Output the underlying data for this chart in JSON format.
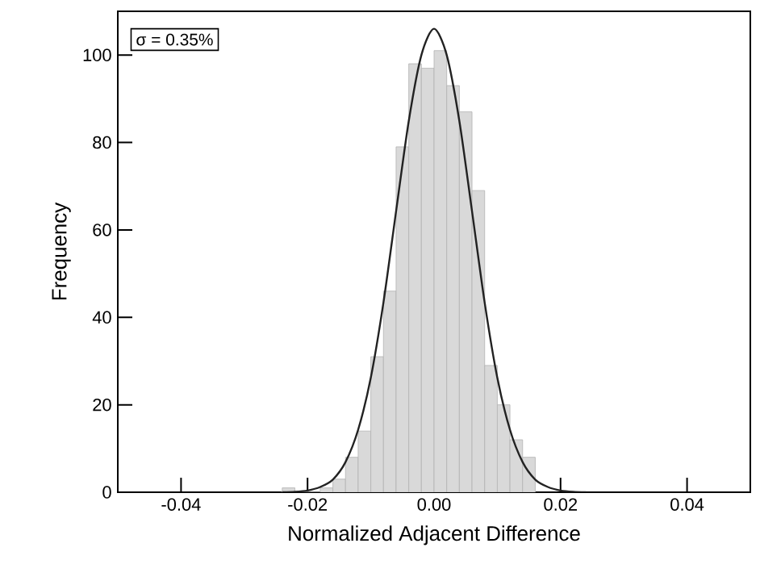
{
  "chart_data": {
    "type": "histogram",
    "xlabel": "Normalized Adjacent Difference",
    "ylabel": "Frequency",
    "bins": [
      -0.024,
      -0.022,
      -0.02,
      -0.018,
      -0.016,
      -0.014,
      -0.012,
      -0.01,
      -0.008,
      -0.006,
      -0.004,
      -0.002,
      0,
      0.002,
      0.004,
      0.006,
      0.008,
      0.01,
      0.012,
      0.014,
      0.016
    ],
    "values": [
      1,
      0,
      0,
      1,
      3,
      8,
      14,
      31,
      46,
      79,
      98,
      97,
      101,
      93,
      87,
      69,
      29,
      20,
      12,
      8
    ],
    "color": "#d9d9d9",
    "series": [
      {
        "type": "line",
        "color": "#222222",
        "x": [
          -0.024,
          -0.022,
          -0.02,
          -0.018,
          -0.016,
          -0.014,
          -0.012,
          -0.01,
          -0.008,
          -0.006,
          -0.004,
          -0.002,
          0,
          0.002,
          0.004,
          0.006,
          0.008,
          0.01,
          0.012,
          0.014,
          0.016,
          0.018,
          0.02,
          0.022,
          0.024
        ],
        "values": [
          0,
          0.1,
          0.4,
          1.2,
          2.9,
          6.9,
          14.3,
          26.2,
          43.4,
          64.3,
          84.9,
          100,
          106,
          100,
          84.9,
          64.3,
          43.4,
          26.2,
          14.3,
          6.9,
          2.9,
          1.2,
          0.4,
          0.1,
          0
        ]
      }
    ],
    "annotations": [
      "σ = 0.35%"
    ],
    "xlim": [
      -0.05,
      0.05
    ],
    "ylim": [
      0,
      110
    ],
    "xticks": [
      {
        "value": -0.04,
        "label": "-0.04"
      },
      {
        "value": -0.02,
        "label": "-0.02"
      },
      {
        "value": 0,
        "label": "0.00"
      },
      {
        "value": 0.02,
        "label": "0.02"
      },
      {
        "value": 0.04,
        "label": "0.04"
      }
    ],
    "yticks": [
      0,
      20,
      40,
      60,
      80,
      100
    ],
    "grid": false
  }
}
